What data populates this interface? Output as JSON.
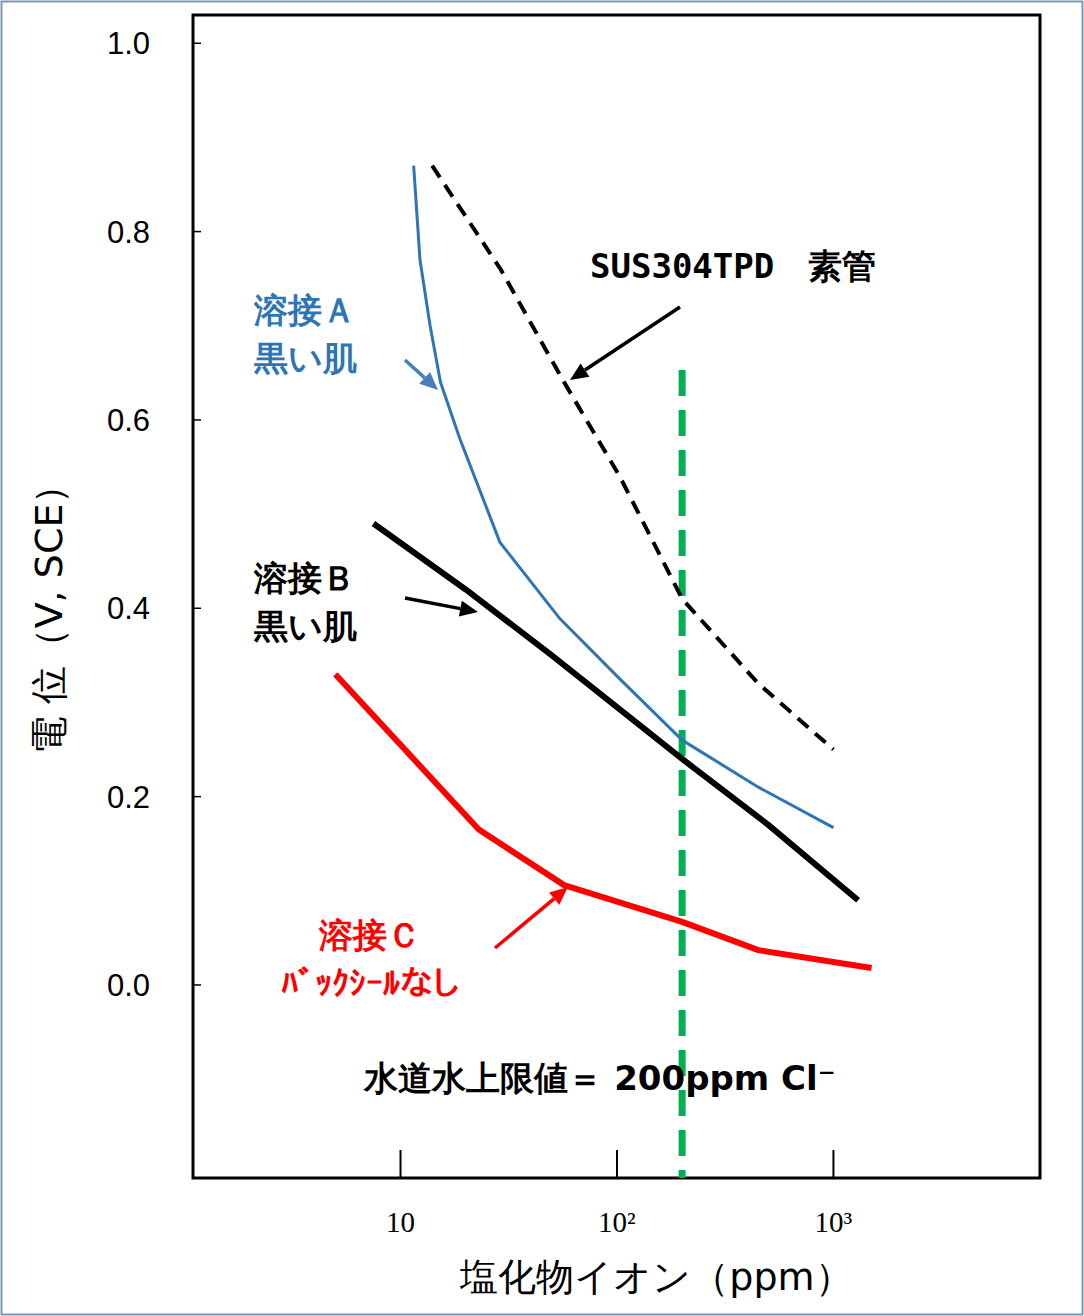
{
  "chart_data": {
    "type": "line",
    "x_label": "塩化物イオン（ppm）",
    "y_label": "電 位（V, SCE）",
    "log": "x",
    "grid": false,
    "xlim": [
      1.1,
      9000
    ],
    "ylim": [
      -0.205,
      1.03
    ],
    "xticks": [
      10,
      {
        "value": 100,
        "label": "10²"
      },
      {
        "value": 1000,
        "label": "10³"
      }
    ],
    "yticks": [
      {
        "value": 0,
        "label": "0.0"
      },
      0.2,
      0.4,
      0.6,
      0.8,
      {
        "value": 1,
        "label": "1.0"
      }
    ],
    "series": [
      {
        "name": "SUS304TPD　素管",
        "color": "#000000",
        "line_style": "dashed",
        "x": [
          14,
          29,
          57,
          103,
          200,
          450,
          1000
        ],
        "values": [
          0.87,
          0.76,
          0.64,
          0.54,
          0.41,
          0.32,
          0.25
        ]
      },
      {
        "name": "溶接Ａ 黒い肌",
        "color": "#2e75b6",
        "line_style": "solid",
        "x": [
          11.5,
          12.3,
          13.7,
          15.3,
          18.8,
          28.8,
          54,
          103,
          200,
          450,
          1000
        ],
        "values": [
          0.87,
          0.77,
          0.7,
          0.64,
          0.58,
          0.47,
          0.39,
          0.325,
          0.26,
          0.21,
          0.167
        ]
      },
      {
        "name": "溶接Ｂ 黒い肌",
        "color": "#000000",
        "line_style": "solid",
        "x": [
          7.5,
          20,
          50,
          100,
          200,
          500,
          1300
        ],
        "values": [
          0.49,
          0.42,
          0.35,
          0.295,
          0.24,
          0.17,
          0.09
        ]
      },
      {
        "name": "溶接Ｃ ﾊﾞｯｸｼｰﾙなし",
        "color": "#ff0000",
        "line_style": "solid",
        "x": [
          5,
          10,
          23,
          57,
          200,
          450,
          1500
        ],
        "values": [
          0.33,
          0.255,
          0.165,
          0.106,
          0.067,
          0.037,
          0.018
        ]
      }
    ],
    "reference_line": {
      "x": 200,
      "color": "#00b050",
      "line_style": "dashed",
      "label": "水道水上限値＝ 200ppm Cl⁻"
    }
  }
}
